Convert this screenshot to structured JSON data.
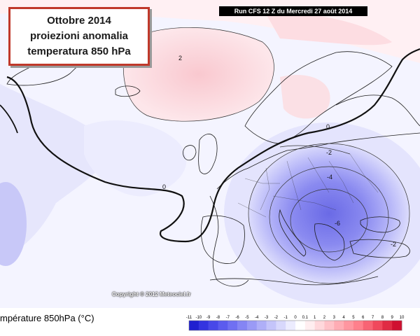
{
  "title": {
    "line1": "Ottobre 2014",
    "line2": "proiezioni anomalia",
    "line3": "temperatura 850 hPa"
  },
  "run_banner": "Run CFS 12 Z du Mercredi 27 août 2014",
  "copyright": "Copyright © 2012 Meteociel.fr",
  "legend": {
    "title": "mpérature 850hPa (°C)",
    "ticks": [
      "-11",
      "-10",
      "-9",
      "-8",
      "-7",
      "-6",
      "-5",
      "-4",
      "-3",
      "-2",
      "-1",
      "0",
      "0.1",
      "1",
      "2",
      "3",
      "4",
      "5",
      "6",
      "7",
      "8",
      "9",
      "10"
    ],
    "colors": [
      "#2020d0",
      "#3434e0",
      "#4848e8",
      "#5c5cee",
      "#7070f2",
      "#8585f4",
      "#9a9af6",
      "#afaff8",
      "#c4c4fa",
      "#d8d8fc",
      "#ececfe",
      "#ffffff",
      "#ffeef0",
      "#ffd8dc",
      "#ffc2c8",
      "#ffacb4",
      "#ff96a0",
      "#ff808c",
      "#f86474",
      "#f0485c",
      "#e02c44",
      "#d01030"
    ]
  },
  "contour_labels": {
    "north_pos": "2",
    "zero_west": "0",
    "zero_north": "0",
    "neg_scand": "-2",
    "neg_east": "-4",
    "neg_center": "-6",
    "neg_south": "-2"
  }
}
